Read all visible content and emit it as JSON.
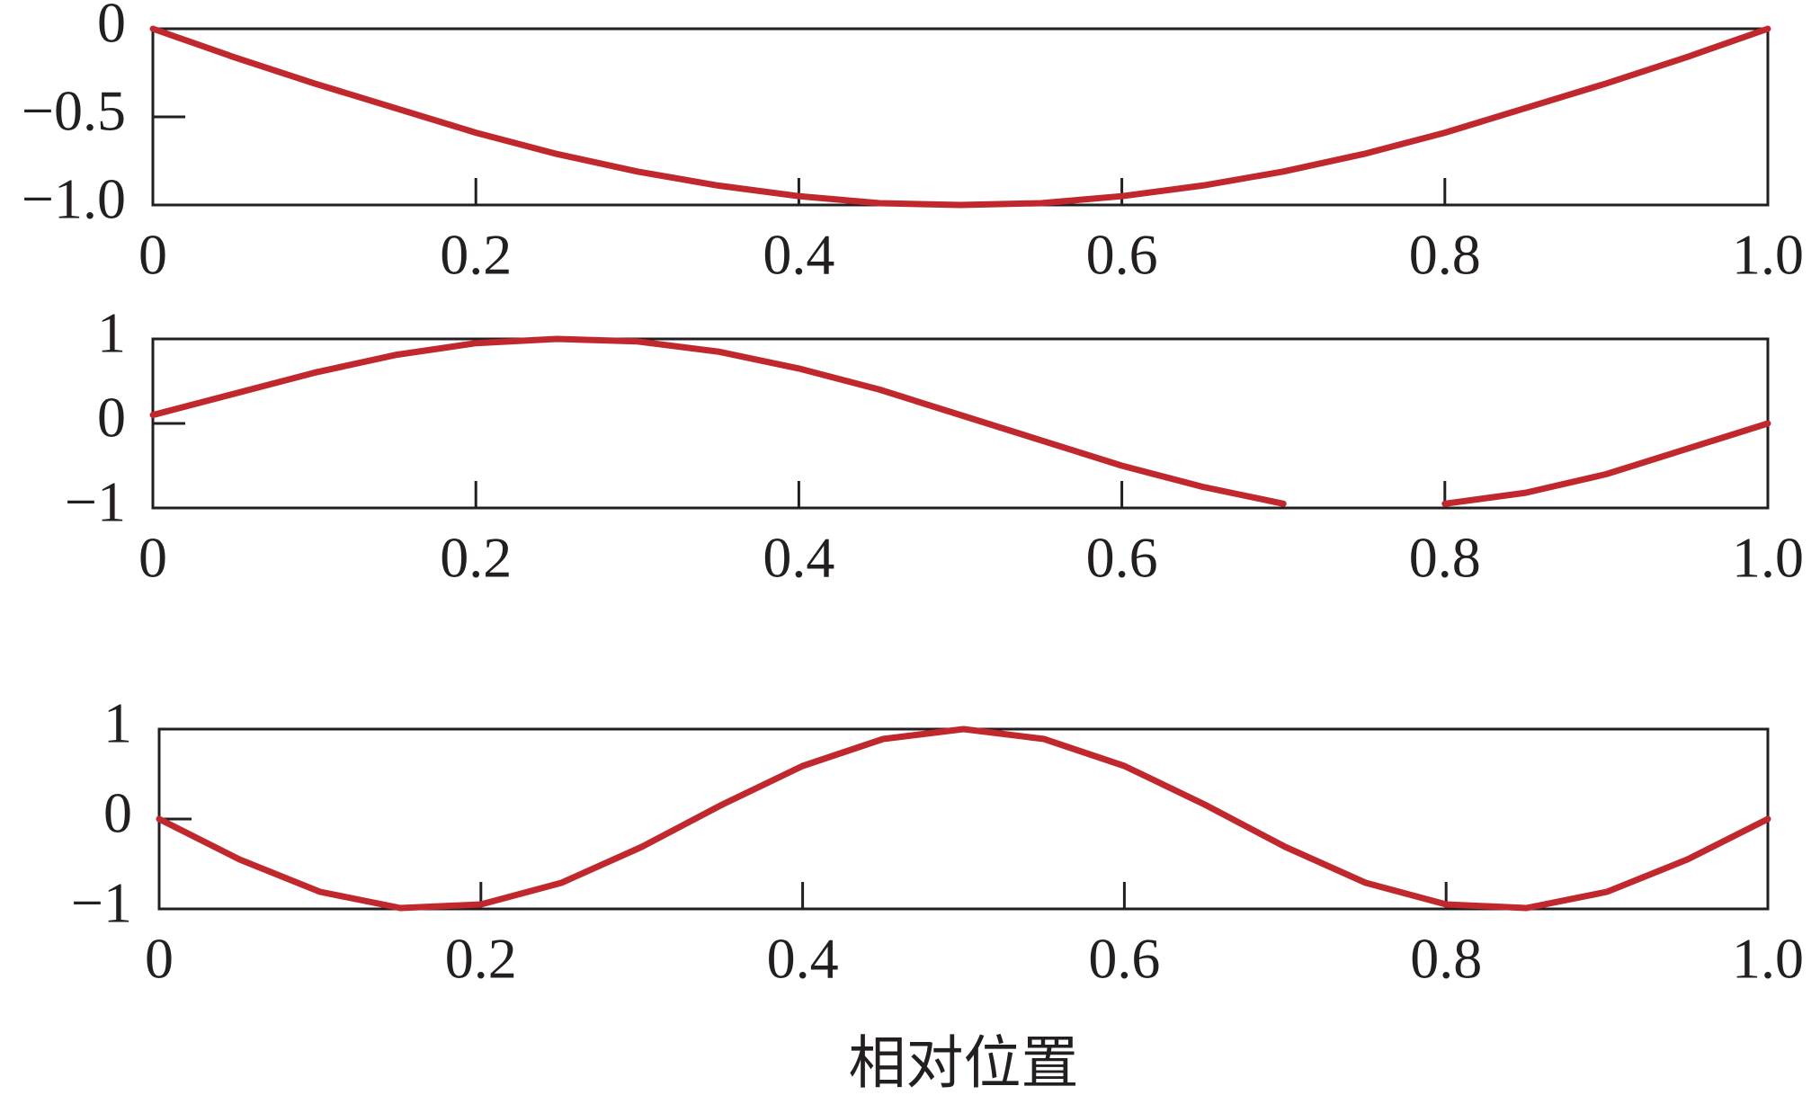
{
  "chart_data": [
    {
      "type": "line",
      "x": [
        0,
        0.05,
        0.1,
        0.15,
        0.2,
        0.25,
        0.3,
        0.35,
        0.4,
        0.45,
        0.5,
        0.55,
        0.6,
        0.65,
        0.7,
        0.75,
        0.8,
        0.85,
        0.9,
        0.95,
        1
      ],
      "series": [
        {
          "color": "#c0282d",
          "values": [
            0,
            -0.16,
            -0.31,
            -0.45,
            -0.59,
            -0.71,
            -0.81,
            -0.89,
            -0.95,
            -0.99,
            -1,
            -0.99,
            -0.95,
            -0.89,
            -0.81,
            -0.71,
            -0.59,
            -0.45,
            -0.31,
            -0.16,
            0
          ]
        }
      ],
      "xlim": [
        0,
        1
      ],
      "ylim": [
        -1,
        0
      ],
      "xticks": [
        0,
        0.2,
        0.4,
        0.6,
        0.8,
        {
          "value": 1,
          "label": "1.0"
        }
      ],
      "yticks": [
        {
          "value": -1,
          "label": "−1.0"
        },
        {
          "value": -0.5,
          "label": "−0.5"
        },
        0
      ]
    },
    {
      "type": "line",
      "x": [
        0,
        0.05,
        0.1,
        0.15,
        0.2,
        0.25,
        0.3,
        0.35,
        0.4,
        0.45,
        0.5,
        0.55,
        0.6,
        0.65,
        0.7,
        0.75,
        0.8,
        0.85,
        0.9,
        0.95,
        1
      ],
      "series": [
        {
          "color": "#c0282d",
          "values": [
            0.1,
            0.35,
            0.6,
            0.81,
            0.95,
            1,
            0.97,
            0.85,
            0.65,
            0.4,
            0.1,
            -0.2,
            -0.5,
            -0.75,
            -0.95,
            null,
            -0.95,
            -0.82,
            -0.6,
            -0.3,
            0
          ]
        }
      ],
      "xlim": [
        0,
        1
      ],
      "ylim": [
        -1,
        1
      ],
      "xticks": [
        0,
        0.2,
        0.4,
        0.6,
        0.8,
        {
          "value": 1,
          "label": "1.0"
        }
      ],
      "yticks": [
        {
          "value": -1,
          "label": "−1"
        },
        0,
        1
      ]
    },
    {
      "type": "line",
      "x": [
        0,
        0.05,
        0.1,
        0.15,
        0.2,
        0.25,
        0.3,
        0.35,
        0.4,
        0.45,
        0.5,
        0.55,
        0.6,
        0.65,
        0.7,
        0.75,
        0.8,
        0.85,
        0.9,
        0.95,
        1
      ],
      "series": [
        {
          "color": "#c0282d",
          "values": [
            0,
            -0.45,
            -0.81,
            -0.99,
            -0.95,
            -0.71,
            -0.31,
            0.16,
            0.59,
            0.89,
            1,
            0.89,
            0.59,
            0.16,
            -0.31,
            -0.71,
            -0.95,
            -0.99,
            -0.81,
            -0.45,
            0
          ]
        }
      ],
      "xlim": [
        0,
        1
      ],
      "ylim": [
        -1,
        1
      ],
      "xticks": [
        0,
        0.2,
        0.4,
        0.6,
        0.8,
        {
          "value": 1,
          "label": "1.0"
        }
      ],
      "yticks": [
        {
          "value": -1,
          "label": "−1"
        },
        0,
        1
      ],
      "xlabel": "相对位置"
    }
  ]
}
